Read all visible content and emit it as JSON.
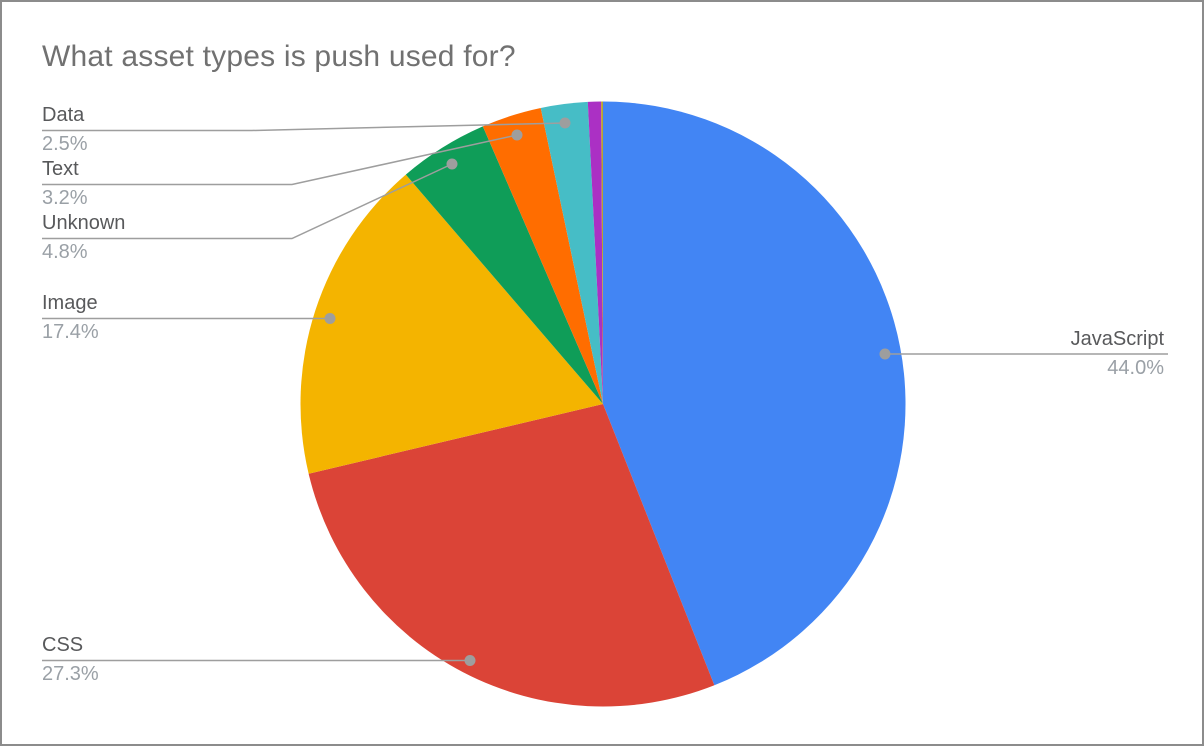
{
  "figure": {
    "background": "#ffffff",
    "border_color": "#8c8c8c",
    "title_color": "#717171",
    "label_color": "#58595b",
    "pct_color": "#9aa0a6",
    "leader_color": "#9e9e9e"
  },
  "chart_data": {
    "type": "pie",
    "title": "What asset types is push used for?",
    "legend_position": "outside-callouts-with-leader-lines",
    "start_angle_deg": 0,
    "direction": "clockwise",
    "slices": [
      {
        "label": "JavaScript",
        "pct_label": "44.0%",
        "value": 44.0,
        "color": "#4285F4",
        "labeled": true
      },
      {
        "label": "CSS",
        "pct_label": "27.3%",
        "value": 27.3,
        "color": "#DB4437",
        "labeled": true
      },
      {
        "label": "Image",
        "pct_label": "17.4%",
        "value": 17.4,
        "color": "#F4B400",
        "labeled": true
      },
      {
        "label": "Unknown",
        "pct_label": "4.8%",
        "value": 4.8,
        "color": "#0F9D58",
        "labeled": true
      },
      {
        "label": "Text",
        "pct_label": "3.2%",
        "value": 3.2,
        "color": "#FF6D00",
        "labeled": true
      },
      {
        "label": "Data",
        "pct_label": "2.5%",
        "value": 2.5,
        "color": "#46BDC6",
        "labeled": true
      },
      {
        "label": "",
        "pct_label": "",
        "value": 0.7,
        "color": "#AB30C4",
        "labeled": false
      },
      {
        "label": "",
        "pct_label": "",
        "value": 0.1,
        "color": "#B8A330",
        "labeled": false
      }
    ]
  }
}
